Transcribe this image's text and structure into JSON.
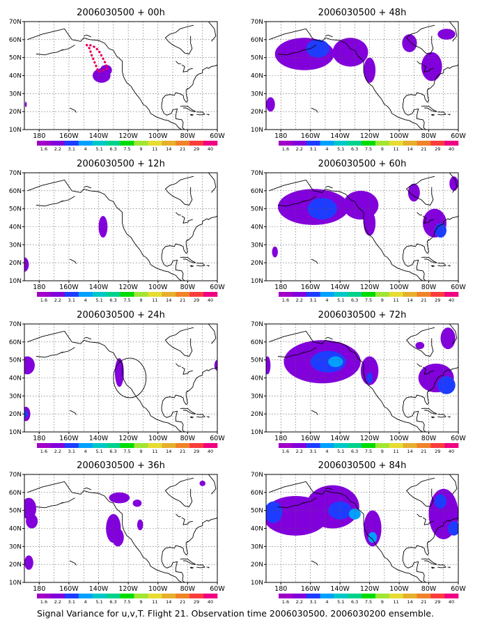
{
  "caption": "Signal Variance for u,v,T. Flight 21. Observation time 2006030500. 2006030200 ensemble.",
  "x_ticks": [
    "180",
    "160W",
    "140W",
    "120W",
    "100W",
    "80W",
    "60W"
  ],
  "y_ticks": [
    "10N",
    "20N",
    "30N",
    "40N",
    "50N",
    "60N",
    "70N"
  ],
  "legend": {
    "labels": [
      "1.6",
      "2.2",
      "3.1",
      "4",
      "5.1",
      "6.3",
      "7.5",
      "9",
      "11",
      "14",
      "21",
      "29",
      "40"
    ],
    "colors": [
      "#a000c8",
      "#8200dc",
      "#1e3cff",
      "#00a0ff",
      "#00c8c8",
      "#00d28c",
      "#00dc00",
      "#a0e632",
      "#e6dc32",
      "#e6af2d",
      "#f08228",
      "#fa3c3c",
      "#f00082"
    ]
  },
  "chart_data": [
    {
      "type": "heatmap",
      "title": "2006030500 + 00h",
      "xlim": [
        -190,
        -60
      ],
      "ylim": [
        10,
        70
      ],
      "blobs": [
        {
          "lon": -138,
          "lat": 40,
          "rx": 6,
          "ry": 4,
          "level": 1
        },
        {
          "lon": -135,
          "lat": 43,
          "rx": 4,
          "ry": 3,
          "level": 1
        },
        {
          "lon": -189,
          "lat": 24,
          "rx": 0.6,
          "ry": 1.5,
          "level": 1
        }
      ],
      "flight_track": [
        [
          -148,
          57
        ],
        [
          -146,
          55
        ],
        [
          -145,
          52
        ],
        [
          -144,
          50
        ],
        [
          -143,
          48
        ],
        [
          -142,
          46
        ],
        [
          -141,
          44
        ],
        [
          -140,
          42
        ],
        [
          -137,
          43
        ],
        [
          -134,
          44
        ],
        [
          -136,
          48
        ],
        [
          -138,
          51
        ],
        [
          -140,
          54
        ],
        [
          -143,
          56
        ],
        [
          -146,
          57
        ]
      ]
    },
    {
      "type": "heatmap",
      "title": "2006030500 + 12h",
      "xlim": [
        -190,
        -60
      ],
      "ylim": [
        10,
        70
      ],
      "blobs": [
        {
          "lon": -137,
          "lat": 40,
          "rx": 3,
          "ry": 6,
          "level": 1
        },
        {
          "lon": -190,
          "lat": 19,
          "rx": 3,
          "ry": 4,
          "level": 1
        }
      ]
    },
    {
      "type": "heatmap",
      "title": "2006030500 + 24h",
      "xlim": [
        -190,
        -60
      ],
      "ylim": [
        10,
        70
      ],
      "blobs": [
        {
          "lon": -188,
          "lat": 47,
          "rx": 5,
          "ry": 5,
          "level": 1
        },
        {
          "lon": -189,
          "lat": 20,
          "rx": 3,
          "ry": 4,
          "level": 1
        },
        {
          "lon": -189,
          "lat": 20,
          "rx": 1.5,
          "ry": 2,
          "level": 2
        },
        {
          "lon": -126,
          "lat": 43,
          "rx": 3,
          "ry": 8,
          "level": 1
        },
        {
          "lon": -60,
          "lat": 47,
          "rx": 2,
          "ry": 3,
          "level": 1
        }
      ],
      "circle": {
        "lon": -119,
        "lat": 40,
        "r_lon": 11,
        "r_lat": 11
      }
    },
    {
      "type": "heatmap",
      "title": "2006030500 + 36h",
      "xlim": [
        -190,
        -60
      ],
      "ylim": [
        10,
        70
      ],
      "blobs": [
        {
          "lon": -187,
          "lat": 51,
          "rx": 5,
          "ry": 6,
          "level": 1
        },
        {
          "lon": -185,
          "lat": 44,
          "rx": 4,
          "ry": 4,
          "level": 1
        },
        {
          "lon": -187,
          "lat": 21,
          "rx": 3,
          "ry": 4,
          "level": 1
        },
        {
          "lon": -130,
          "lat": 40,
          "rx": 5,
          "ry": 8,
          "level": 1
        },
        {
          "lon": -127,
          "lat": 35,
          "rx": 4,
          "ry": 5,
          "level": 1
        },
        {
          "lon": -126,
          "lat": 57,
          "rx": 7,
          "ry": 3,
          "level": 1
        },
        {
          "lon": -114,
          "lat": 54,
          "rx": 3,
          "ry": 2,
          "level": 1
        },
        {
          "lon": -112,
          "lat": 42,
          "rx": 2,
          "ry": 3,
          "level": 1
        },
        {
          "lon": -70,
          "lat": 65,
          "rx": 2,
          "ry": 1.5,
          "level": 1
        }
      ]
    },
    {
      "type": "heatmap",
      "title": "2006030500 + 48h",
      "xlim": [
        -190,
        -60
      ],
      "ylim": [
        10,
        70
      ],
      "blobs": [
        {
          "lon": -164,
          "lat": 52,
          "rx": 20,
          "ry": 9,
          "level": 1
        },
        {
          "lon": -155,
          "lat": 55,
          "rx": 8,
          "ry": 5,
          "level": 2
        },
        {
          "lon": -133,
          "lat": 53,
          "rx": 12,
          "ry": 8,
          "level": 1
        },
        {
          "lon": -120,
          "lat": 43,
          "rx": 4,
          "ry": 7,
          "level": 1
        },
        {
          "lon": -93,
          "lat": 58,
          "rx": 5,
          "ry": 5,
          "level": 1
        },
        {
          "lon": -78,
          "lat": 45,
          "rx": 7,
          "ry": 8,
          "level": 1
        },
        {
          "lon": -68,
          "lat": 63,
          "rx": 6,
          "ry": 3,
          "level": 1
        },
        {
          "lon": -187,
          "lat": 24,
          "rx": 3,
          "ry": 4,
          "level": 1
        }
      ]
    },
    {
      "type": "heatmap",
      "title": "2006030500 + 60h",
      "xlim": [
        -190,
        -60
      ],
      "ylim": [
        10,
        70
      ],
      "blobs": [
        {
          "lon": -158,
          "lat": 51,
          "rx": 24,
          "ry": 10,
          "level": 1
        },
        {
          "lon": -152,
          "lat": 50,
          "rx": 10,
          "ry": 6,
          "level": 2
        },
        {
          "lon": -126,
          "lat": 52,
          "rx": 12,
          "ry": 8,
          "level": 1
        },
        {
          "lon": -120,
          "lat": 42,
          "rx": 4,
          "ry": 7,
          "level": 1
        },
        {
          "lon": -90,
          "lat": 59,
          "rx": 4,
          "ry": 5,
          "level": 1
        },
        {
          "lon": -76,
          "lat": 42,
          "rx": 8,
          "ry": 8,
          "level": 1
        },
        {
          "lon": -72,
          "lat": 38,
          "rx": 4,
          "ry": 4,
          "level": 2
        },
        {
          "lon": -63,
          "lat": 64,
          "rx": 3,
          "ry": 4,
          "level": 1
        },
        {
          "lon": -184,
          "lat": 26,
          "rx": 2,
          "ry": 3,
          "level": 1
        }
      ]
    },
    {
      "type": "heatmap",
      "title": "2006030500 + 72h",
      "xlim": [
        -190,
        -60
      ],
      "ylim": [
        10,
        70
      ],
      "blobs": [
        {
          "lon": -152,
          "lat": 49,
          "rx": 26,
          "ry": 12,
          "level": 1
        },
        {
          "lon": -148,
          "lat": 49,
          "rx": 12,
          "ry": 6,
          "level": 2
        },
        {
          "lon": -143,
          "lat": 49,
          "rx": 5,
          "ry": 3,
          "level": 3
        },
        {
          "lon": -120,
          "lat": 44,
          "rx": 6,
          "ry": 8,
          "level": 1
        },
        {
          "lon": -120,
          "lat": 40,
          "rx": 2,
          "ry": 3,
          "level": 2
        },
        {
          "lon": -75,
          "lat": 40,
          "rx": 12,
          "ry": 8,
          "level": 1
        },
        {
          "lon": -68,
          "lat": 36,
          "rx": 6,
          "ry": 5,
          "level": 2
        },
        {
          "lon": -67,
          "lat": 62,
          "rx": 5,
          "ry": 6,
          "level": 1
        },
        {
          "lon": -86,
          "lat": 58,
          "rx": 3,
          "ry": 2,
          "level": 1
        },
        {
          "lon": -189,
          "lat": 47,
          "rx": 2,
          "ry": 5,
          "level": 1
        }
      ]
    },
    {
      "type": "heatmap",
      "title": "2006030500 + 84h",
      "xlim": [
        -190,
        -60
      ],
      "ylim": [
        10,
        70
      ],
      "blobs": [
        {
          "lon": -170,
          "lat": 47,
          "rx": 22,
          "ry": 11,
          "level": 1
        },
        {
          "lon": -185,
          "lat": 49,
          "rx": 6,
          "ry": 6,
          "level": 2
        },
        {
          "lon": -145,
          "lat": 52,
          "rx": 18,
          "ry": 12,
          "level": 1
        },
        {
          "lon": -140,
          "lat": 50,
          "rx": 8,
          "ry": 5,
          "level": 2
        },
        {
          "lon": -130,
          "lat": 48,
          "rx": 4,
          "ry": 3,
          "level": 3
        },
        {
          "lon": -118,
          "lat": 40,
          "rx": 6,
          "ry": 10,
          "level": 1
        },
        {
          "lon": -118,
          "lat": 35,
          "rx": 3,
          "ry": 3,
          "level": 3
        },
        {
          "lon": -70,
          "lat": 48,
          "rx": 10,
          "ry": 14,
          "level": 1
        },
        {
          "lon": -72,
          "lat": 55,
          "rx": 4,
          "ry": 4,
          "level": 2
        },
        {
          "lon": -63,
          "lat": 40,
          "rx": 4,
          "ry": 4,
          "level": 2
        }
      ]
    }
  ]
}
